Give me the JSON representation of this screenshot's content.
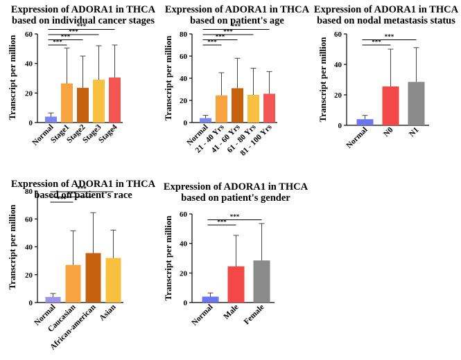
{
  "chart_data": [
    {
      "type": "bar",
      "title": [
        "Expression of ADORA1 in THCA",
        "based on individual cancer stages"
      ],
      "ylabel": "Transcript per million",
      "ylim": [
        0,
        60
      ],
      "yticks": [
        0,
        20,
        40,
        60
      ],
      "categories": [
        "Normal",
        "Stage1",
        "Stage2",
        "Stage3",
        "Stage4"
      ],
      "values": [
        4,
        26.5,
        23.5,
        29,
        30.5
      ],
      "error_upper": [
        6.5,
        50.5,
        45,
        52,
        52.5
      ],
      "colors": [
        "#7b86ee",
        "#f6a340",
        "#c4600e",
        "#f7c03e",
        "#f25552"
      ],
      "significance": [
        {
          "from": 0,
          "to": 1,
          "label": "***"
        },
        {
          "from": 0,
          "to": 2,
          "label": "***"
        },
        {
          "from": 0,
          "to": 3,
          "label": "***"
        },
        {
          "from": 0,
          "to": 4,
          "label": "***"
        }
      ]
    },
    {
      "type": "bar",
      "title": [
        "Expression of ADORA1 in THCA",
        "based on patient's age"
      ],
      "ylabel": "Transcript per million",
      "ylim": [
        0,
        80
      ],
      "yticks": [
        0,
        20,
        40,
        60,
        80
      ],
      "categories": [
        "Normal",
        "21 - 40 Yrs",
        "41 - 60 Yrs",
        "61 - 80 Yrs",
        "81 - 100 Yrs"
      ],
      "values": [
        4,
        24.5,
        31,
        25,
        26
      ],
      "error_upper": [
        6.5,
        45,
        58,
        49,
        46
      ],
      "colors": [
        "#7b86ee",
        "#f6a340",
        "#c4600e",
        "#f7c03e",
        "#f25552"
      ],
      "significance": [
        {
          "from": 0,
          "to": 1,
          "label": "***"
        },
        {
          "from": 0,
          "to": 2,
          "label": "***"
        },
        {
          "from": 0,
          "to": 3,
          "label": "***"
        },
        {
          "from": 0,
          "to": 4,
          "label": "***"
        }
      ]
    },
    {
      "type": "bar",
      "title": [
        "Expression of ADORA1 in THCA",
        "based on nodal metastasis status"
      ],
      "ylabel": "Transcript per million",
      "ylim": [
        0,
        60
      ],
      "yticks": [
        0,
        20,
        40,
        60
      ],
      "categories": [
        "Normal",
        "N0",
        "N1"
      ],
      "values": [
        4,
        25.5,
        28.5
      ],
      "error_upper": [
        6.5,
        50,
        51
      ],
      "colors": [
        "#6c74ee",
        "#f24848",
        "#8a8a8a"
      ],
      "significance": [
        {
          "from": 0,
          "to": 1,
          "label": "***"
        },
        {
          "from": 0,
          "to": 2,
          "label": "***"
        }
      ]
    },
    {
      "type": "bar",
      "title": [
        "Expression of ADORA1 in THCA",
        "based on patient's race"
      ],
      "ylabel": "Transcript per million",
      "ylim": [
        0,
        80
      ],
      "yticks": [
        0,
        20,
        40,
        60,
        80
      ],
      "categories": [
        "Normal",
        "Caucasian",
        "African-american",
        "Asian"
      ],
      "values": [
        4,
        27,
        35.5,
        32
      ],
      "error_upper": [
        6.5,
        51.5,
        64.5,
        52
      ],
      "colors": [
        "#9b94ee",
        "#f6a340",
        "#c4600e",
        "#f7c03e"
      ],
      "significance": [
        {
          "from": 0,
          "to": 1,
          "label": "***"
        },
        {
          "from": 0,
          "to": 2,
          "label": "***"
        },
        {
          "from": 0,
          "to": 3,
          "label": "***"
        }
      ]
    },
    {
      "type": "bar",
      "title": [
        "Expression of ADORA1 in THCA",
        "based on patient's gender"
      ],
      "ylabel": "Transcript per million",
      "ylim": [
        0,
        60
      ],
      "yticks": [
        0,
        20,
        40,
        60
      ],
      "categories": [
        "Normal",
        "Male",
        "Female"
      ],
      "values": [
        4,
        24.5,
        28.5
      ],
      "error_upper": [
        6.5,
        45.5,
        53.5
      ],
      "colors": [
        "#6c74ee",
        "#f24848",
        "#8a8a8a"
      ],
      "significance": [
        {
          "from": 0,
          "to": 1,
          "label": "***"
        },
        {
          "from": 0,
          "to": 2,
          "label": "***"
        }
      ]
    }
  ]
}
